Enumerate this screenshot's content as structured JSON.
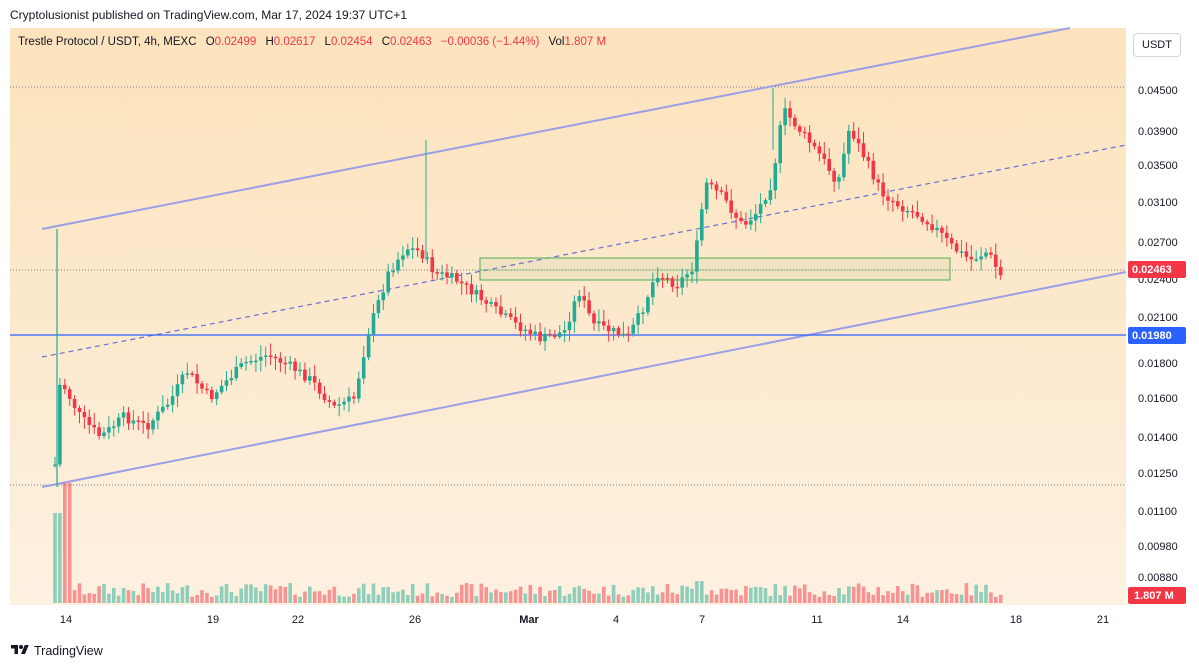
{
  "header": {
    "published_by": "Cryptolusionist published on TradingView.com, Mar 17, 2024 19:37 UTC+1"
  },
  "legend": {
    "symbol": "Trestle Protocol / USDT, 4h, MEXC",
    "open_label": "O",
    "open": "0.02499",
    "high_label": "H",
    "high": "0.02617",
    "low_label": "L",
    "low": "0.02454",
    "close_label": "C",
    "close": "0.02463",
    "change": "−0.00036 (−1.44%)",
    "vol_label": "Vol",
    "vol": "1.807 M"
  },
  "currency_button": "USDT",
  "footer": {
    "brand": "TradingView"
  },
  "colors": {
    "up": "#22ab94",
    "down": "#f23645",
    "channel": "#9c9ee8",
    "support": "#2962ff",
    "box": "#4caf50"
  },
  "chart_data": {
    "type": "candlestick",
    "title": "Trestle Protocol / USDT, 4h, MEXC",
    "y_ticks": [
      "0.04500",
      "0.03900",
      "0.03500",
      "0.03100",
      "0.02700",
      "0.02400",
      "0.02100",
      "0.01800",
      "0.01600",
      "0.01400",
      "0.01250",
      "0.01100",
      "0.00980",
      "0.00880"
    ],
    "x_ticks": [
      "14",
      "19",
      "22",
      "26",
      "Mar",
      "4",
      "7",
      "11",
      "14",
      "18",
      "21"
    ],
    "x_range_days": [
      13.5,
      21.5
    ],
    "last_price_label": "0.02463",
    "support_level_label": "0.01980",
    "volume_label": "1.807 M",
    "close_path": [
      {
        "day": 13.6,
        "price": 0.0125
      },
      {
        "day": 13.8,
        "price": 0.017
      },
      {
        "day": 14.5,
        "price": 0.015
      },
      {
        "day": 15.2,
        "price": 0.014
      },
      {
        "day": 16.0,
        "price": 0.015
      },
      {
        "day": 16.8,
        "price": 0.0145
      },
      {
        "day": 17.6,
        "price": 0.0158
      },
      {
        "day": 18.2,
        "price": 0.0175
      },
      {
        "day": 19.0,
        "price": 0.016
      },
      {
        "day": 19.6,
        "price": 0.017
      },
      {
        "day": 20.2,
        "price": 0.018
      },
      {
        "day": 21.0,
        "price": 0.0185
      },
      {
        "day": 21.8,
        "price": 0.0178
      },
      {
        "day": 22.5,
        "price": 0.017
      },
      {
        "day": 23.3,
        "price": 0.0155
      },
      {
        "day": 24.0,
        "price": 0.016
      },
      {
        "day": 24.5,
        "price": 0.02
      },
      {
        "day": 25.2,
        "price": 0.0245
      },
      {
        "day": 25.8,
        "price": 0.0265
      },
      {
        "day": 26.3,
        "price": 0.0262
      },
      {
        "day": 26.8,
        "price": 0.0245
      },
      {
        "day": 27.5,
        "price": 0.024
      },
      {
        "day": 28.2,
        "price": 0.0228
      },
      {
        "day": 28.9,
        "price": 0.0215
      },
      {
        "day": 29.6,
        "price": 0.0205
      },
      {
        "day": 30.5,
        "price": 0.0195
      },
      {
        "day": 31.3,
        "price": 0.02
      },
      {
        "day": 31.8,
        "price": 0.023
      },
      {
        "day": 32.3,
        "price": 0.0205
      },
      {
        "day": 33.0,
        "price": 0.02
      },
      {
        "day": 33.5,
        "price": 0.0196
      },
      {
        "day": 34.0,
        "price": 0.0215
      },
      {
        "day": 34.5,
        "price": 0.0245
      },
      {
        "day": 35.2,
        "price": 0.0235
      },
      {
        "day": 35.8,
        "price": 0.025
      },
      {
        "day": 36.2,
        "price": 0.033
      },
      {
        "day": 36.8,
        "price": 0.0315
      },
      {
        "day": 37.5,
        "price": 0.0285
      },
      {
        "day": 38.0,
        "price": 0.03
      },
      {
        "day": 38.5,
        "price": 0.033
      },
      {
        "day": 38.9,
        "price": 0.042
      },
      {
        "day": 39.5,
        "price": 0.039
      },
      {
        "day": 40.2,
        "price": 0.036
      },
      {
        "day": 40.8,
        "price": 0.033
      },
      {
        "day": 41.2,
        "price": 0.0395
      },
      {
        "day": 41.7,
        "price": 0.036
      },
      {
        "day": 42.3,
        "price": 0.032
      },
      {
        "day": 43.0,
        "price": 0.0305
      },
      {
        "day": 43.7,
        "price": 0.0295
      },
      {
        "day": 44.3,
        "price": 0.028
      },
      {
        "day": 44.8,
        "price": 0.0265
      },
      {
        "day": 45.4,
        "price": 0.0255
      },
      {
        "day": 46.0,
        "price": 0.0262
      },
      {
        "day": 46.5,
        "price": 0.024
      },
      {
        "day": 46.9,
        "price": 0.0225
      },
      {
        "day": 47.4,
        "price": 0.024
      },
      {
        "day": 47.7,
        "price": 0.0246
      }
    ]
  }
}
